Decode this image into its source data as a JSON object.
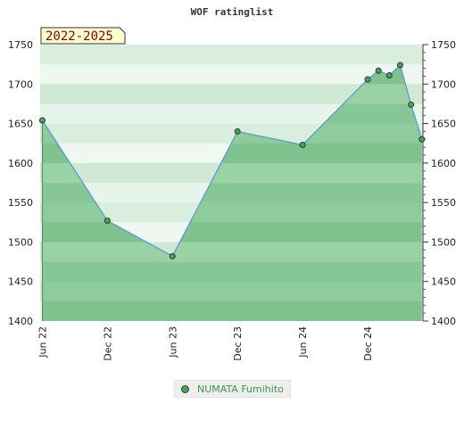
{
  "chart_data": {
    "type": "area",
    "title": "WOF ratinglist",
    "badge": "2022-2025",
    "ylim": [
      1400,
      1750
    ],
    "y_ticks": [
      1400,
      1450,
      1500,
      1550,
      1600,
      1650,
      1700,
      1750
    ],
    "y_tick_labels": [
      "1400",
      "1450",
      "1500",
      "1550",
      "1600",
      "1650",
      "1700",
      "1750"
    ],
    "x_ticks": [
      "Jun 22",
      "Dec 22",
      "Jun 23",
      "Dec 23",
      "Jun 24",
      "Dec 24"
    ],
    "xlim": [
      "2022-05",
      "2025-05"
    ],
    "grid": true,
    "legend_position": "bottom",
    "series": [
      {
        "name": "NUMATA Fumihito",
        "points": [
          {
            "x": "2022-06",
            "y": 1654
          },
          {
            "x": "2022-12",
            "y": 1527
          },
          {
            "x": "2023-06",
            "y": 1482
          },
          {
            "x": "2023-12",
            "y": 1640
          },
          {
            "x": "2024-06",
            "y": 1623
          },
          {
            "x": "2024-12",
            "y": 1706
          },
          {
            "x": "2025-01",
            "y": 1717
          },
          {
            "x": "2025-02",
            "y": 1711
          },
          {
            "x": "2025-03",
            "y": 1724
          },
          {
            "x": "2025-04",
            "y": 1674
          },
          {
            "x": "2025-05",
            "y": 1630
          }
        ]
      }
    ]
  },
  "colors": {
    "line": "#5b9bd5",
    "fill": "#7cbf8a",
    "marker": "#4f9f5f",
    "legend_text": "#3a9a4a",
    "badge_bg": "#ffffcc",
    "badge_text": "#8b0000"
  }
}
